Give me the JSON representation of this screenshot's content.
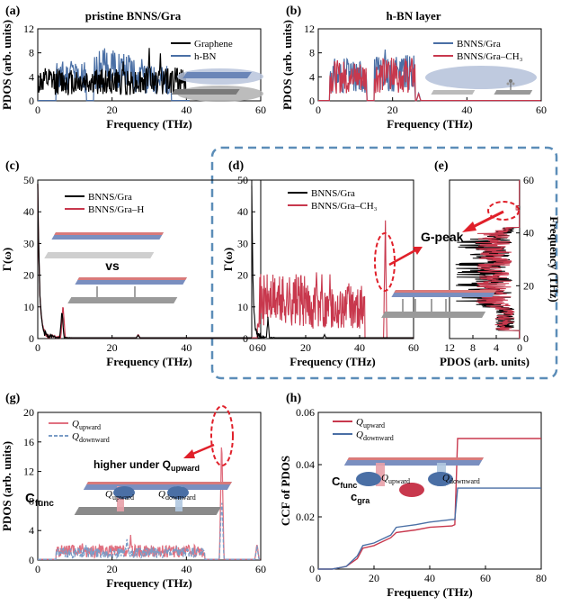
{
  "figure": {
    "panel_labels": [
      "(a)",
      "(b)",
      "(c)",
      "(d)",
      "(e)",
      "(g)",
      "(h)"
    ],
    "annotations": {
      "vs": "vs",
      "g_peak": "G-peak",
      "higher_under": "higher under Q",
      "higher_under_sub": "upward",
      "c_func": "C",
      "c_func_sub": "func",
      "c_gra": "c",
      "c_gra_sub": "gra",
      "q_upward": "Q",
      "q_upward_sub": "upward",
      "q_downward": "Q",
      "q_downward_sub": "downward"
    },
    "colors": {
      "black": "#000000",
      "blue": "#4a6fa5",
      "red": "#c8384d",
      "red_light": "#e07080",
      "blue_light": "#7a9cc6",
      "dashed_box": "#5b8db8",
      "arrow_red": "#e0202a"
    }
  },
  "chart_data": [
    {
      "id": "a",
      "type": "line",
      "title": "pristine BNNS/Gra",
      "xlabel": "Frequency (THz)",
      "ylabel": "PDOS (arb. units)",
      "xlim": [
        0,
        60
      ],
      "ylim": [
        0,
        12
      ],
      "xticks": [
        0,
        20,
        40,
        60
      ],
      "yticks": [
        0,
        4,
        8,
        12
      ],
      "series": [
        {
          "name": "Graphene",
          "color": "#000000",
          "range": [
            0,
            40
          ],
          "bands": [
            [
              0,
              40,
              3.2
            ]
          ],
          "peaks": [
            [
              30,
              9.0
            ],
            [
              33,
              8.5
            ],
            [
              37,
              6.0
            ],
            [
              23,
              7.0
            ]
          ]
        },
        {
          "name": "h-BN",
          "color": "#4a6fa5",
          "range": [
            0,
            41
          ],
          "bands": [
            [
              5,
              13,
              4.0
            ],
            [
              15,
              26,
              5.0
            ],
            [
              26,
              36,
              3.5
            ]
          ],
          "peaks": [
            [
              9,
              7.5
            ],
            [
              20,
              8.0
            ],
            [
              18,
              9.5
            ],
            [
              28,
              8.5
            ]
          ]
        }
      ]
    },
    {
      "id": "b",
      "type": "line",
      "title": "h-BN layer",
      "xlabel": "Frequency (THz)",
      "ylabel": "PDOS (arb. units)",
      "xlim": [
        0,
        60
      ],
      "ylim": [
        0,
        12
      ],
      "xticks": [
        0,
        20,
        40,
        60
      ],
      "yticks": [
        0,
        4,
        8,
        12
      ],
      "series": [
        {
          "name": "BNNS/Gra",
          "color": "#4a6fa5",
          "range": [
            0,
            60
          ],
          "bands": [
            [
              3,
              13,
              4.2
            ],
            [
              15,
              26,
              4.5
            ]
          ],
          "peaks": [
            [
              8,
              7.0
            ],
            [
              18,
              9.3
            ],
            [
              21,
              8.0
            ],
            [
              27,
              1.5
            ]
          ]
        },
        {
          "name": "BNNS/Gra–CH₃",
          "color": "#c8384d",
          "range": [
            0,
            60
          ],
          "bands": [
            [
              3,
              13,
              4.0
            ],
            [
              15,
              26,
              4.3
            ]
          ],
          "peaks": [
            [
              9,
              6.2
            ],
            [
              19,
              7.5
            ],
            [
              21,
              6.0
            ],
            [
              27,
              1.3
            ]
          ]
        }
      ]
    },
    {
      "id": "c",
      "type": "line",
      "xlabel": "Frequency (THz)",
      "ylabel": "Γ(ω)",
      "xlim": [
        0,
        60
      ],
      "ylim": [
        0,
        50
      ],
      "xticks": [
        0,
        20,
        40,
        60
      ],
      "yticks": [
        0,
        10,
        20,
        30,
        40,
        50
      ],
      "series": [
        {
          "name": "BNNS/Gra",
          "color": "#000000",
          "decay": true,
          "peaks": [
            [
              6.5,
              10
            ],
            [
              27,
              1.2
            ]
          ]
        },
        {
          "name": "BNNS/Gra–H",
          "color": "#c8384d",
          "decay": true,
          "peaks": [
            [
              6.8,
              12.5
            ],
            [
              27,
              1.5
            ]
          ]
        }
      ]
    },
    {
      "id": "d",
      "type": "line",
      "xlabel": "Frequency (THz)",
      "ylabel": "Γ(ω)",
      "xlim": [
        0,
        60
      ],
      "ylim": [
        0,
        50
      ],
      "xticks": [
        0,
        20,
        40,
        60
      ],
      "yticks": [
        0,
        10,
        20,
        30,
        40,
        50
      ],
      "series": [
        {
          "name": "BNNS/Gra",
          "color": "#000000",
          "decay": true,
          "peaks": [
            [
              6,
              7
            ],
            [
              27,
              1.5
            ]
          ]
        },
        {
          "name": "BNNS/Gra–CH₃",
          "color": "#c8384d",
          "bands": [
            [
              2,
              20,
              12
            ],
            [
              20,
              42,
              10
            ]
          ],
          "peaks": [
            [
              24,
              25
            ],
            [
              26,
              22
            ],
            [
              29,
              24
            ],
            [
              36,
              18
            ],
            [
              49.5,
              43
            ]
          ]
        }
      ]
    },
    {
      "id": "e",
      "type": "line",
      "orientation": "horizontal",
      "xlabel": "PDOS (arb. units)",
      "ylabel": "Frequency (THz)",
      "xlim": [
        12,
        0
      ],
      "ylim": [
        0,
        60
      ],
      "xticks": [
        12,
        8,
        4,
        0
      ],
      "yticks": [
        0,
        20,
        40,
        60
      ],
      "series": [
        {
          "name": "BNNS/Gra",
          "color": "#000000"
        },
        {
          "name": "BNNS/Gra–CH₃",
          "color": "#c8384d"
        }
      ]
    },
    {
      "id": "g",
      "type": "line",
      "xlabel": "Frequency (THz)",
      "ylabel": "PDOS (arb. units)",
      "xlim": [
        0,
        60
      ],
      "ylim": [
        0,
        20
      ],
      "xticks": [
        0,
        20,
        40,
        60
      ],
      "yticks": [
        0,
        4,
        8,
        12,
        16,
        20
      ],
      "series": [
        {
          "name": "Q_upward",
          "legend_main": "Q",
          "legend_sub": "upward",
          "color": "#e07080",
          "bands": [
            [
              5,
              45,
              1.2
            ]
          ],
          "peaks": [
            [
              12,
              2.5
            ],
            [
              25,
              3.5
            ],
            [
              49.5,
              18.0
            ],
            [
              59,
              2.5
            ]
          ]
        },
        {
          "name": "Q_downward",
          "legend_main": "Q",
          "legend_sub": "downward",
          "color": "#7a9cc6",
          "bands": [
            [
              5,
              45,
              1.0
            ]
          ],
          "peaks": [
            [
              13,
              2.2
            ],
            [
              24,
              3.0
            ],
            [
              49.5,
              9.5
            ],
            [
              59,
              2.0
            ]
          ]
        }
      ]
    },
    {
      "id": "h",
      "type": "line",
      "xlabel": "Frequency (THz)",
      "ylabel": "CCF of PDOS",
      "xlim": [
        0,
        80
      ],
      "ylim": [
        0,
        0.06
      ],
      "xticks": [
        0,
        20,
        40,
        60,
        80
      ],
      "yticks": [
        0,
        0.02,
        0.04,
        0.06
      ],
      "ytick_labels": [
        "0",
        "0.02",
        "0.04",
        "0.06"
      ],
      "series": [
        {
          "name": "Q_upward",
          "legend_main": "Q",
          "legend_sub": "upward",
          "color": "#c8384d",
          "points": [
            [
              0,
              0
            ],
            [
              5,
              0
            ],
            [
              10,
              0.001
            ],
            [
              14,
              0.004
            ],
            [
              16,
              0.008
            ],
            [
              20,
              0.009
            ],
            [
              22,
              0.01
            ],
            [
              26,
              0.012
            ],
            [
              28,
              0.014
            ],
            [
              35,
              0.015
            ],
            [
              40,
              0.016
            ],
            [
              48,
              0.0165
            ],
            [
              49,
              0.017
            ],
            [
              50,
              0.05
            ],
            [
              60,
              0.05
            ],
            [
              80,
              0.05
            ]
          ]
        },
        {
          "name": "Q_downward",
          "legend_main": "Q",
          "legend_sub": "downward",
          "color": "#4a6fa5",
          "points": [
            [
              0,
              0
            ],
            [
              5,
              0
            ],
            [
              10,
              0.001
            ],
            [
              14,
              0.005
            ],
            [
              16,
              0.009
            ],
            [
              20,
              0.01
            ],
            [
              22,
              0.011
            ],
            [
              26,
              0.013
            ],
            [
              28,
              0.016
            ],
            [
              35,
              0.017
            ],
            [
              40,
              0.018
            ],
            [
              48,
              0.019
            ],
            [
              49,
              0.019
            ],
            [
              50,
              0.031
            ],
            [
              60,
              0.031
            ],
            [
              80,
              0.031
            ]
          ]
        }
      ]
    }
  ]
}
